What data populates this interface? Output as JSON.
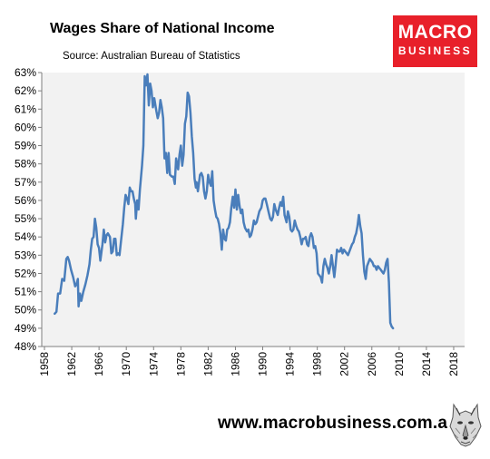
{
  "header": {
    "title": "Wages Share of National Income",
    "subtitle": "Source: Australian Bureau of Statistics"
  },
  "logo": {
    "line1": "MACRO",
    "line2": "BUSINESS",
    "bg_color": "#e8202a"
  },
  "footer": {
    "url": "www.macrobusiness.com.au",
    "mascot_icon": "wolf-icon"
  },
  "chart_data": {
    "type": "line",
    "title": "Wages Share of National Income",
    "subtitle": "Source: Australian Bureau of Statistics",
    "xlabel": "",
    "ylabel": "",
    "xlim": [
      1957.6,
      2019.6
    ],
    "ylim": [
      48,
      63
    ],
    "xticks": [
      1958,
      1962,
      1966,
      1970,
      1974,
      1978,
      1982,
      1986,
      1990,
      1994,
      1998,
      2002,
      2006,
      2010,
      2014,
      2018
    ],
    "yticks": [
      "48%",
      "49%",
      "50%",
      "51%",
      "52%",
      "53%",
      "54%",
      "55%",
      "56%",
      "57%",
      "58%",
      "59%",
      "60%",
      "61%",
      "62%",
      "63%"
    ],
    "grid": false,
    "plot_bg": "#f2f2f2",
    "line_color": "#4a7ebb",
    "series": [
      {
        "values": [
          [
            1959.5,
            49.8
          ],
          [
            1959.75,
            49.9
          ],
          [
            1960.0,
            50.9
          ],
          [
            1960.3,
            50.9
          ],
          [
            1960.6,
            51.7
          ],
          [
            1960.9,
            51.6
          ],
          [
            1961.2,
            52.8
          ],
          [
            1961.4,
            52.9
          ],
          [
            1961.6,
            52.7
          ],
          [
            1961.9,
            52.2
          ],
          [
            1962.2,
            51.8
          ],
          [
            1962.5,
            51.3
          ],
          [
            1962.7,
            51.4
          ],
          [
            1962.9,
            51.7
          ],
          [
            1963.0,
            50.2
          ],
          [
            1963.2,
            50.9
          ],
          [
            1963.4,
            50.5
          ],
          [
            1963.7,
            51.0
          ],
          [
            1964.0,
            51.4
          ],
          [
            1964.3,
            51.9
          ],
          [
            1964.6,
            52.5
          ],
          [
            1964.8,
            53.3
          ],
          [
            1965.0,
            53.9
          ],
          [
            1965.2,
            54.0
          ],
          [
            1965.4,
            55.0
          ],
          [
            1965.6,
            54.5
          ],
          [
            1965.8,
            53.6
          ],
          [
            1966.0,
            53.4
          ],
          [
            1966.2,
            52.7
          ],
          [
            1966.5,
            53.6
          ],
          [
            1966.7,
            54.4
          ],
          [
            1966.9,
            53.7
          ],
          [
            1967.1,
            54.1
          ],
          [
            1967.3,
            54.2
          ],
          [
            1967.6,
            54.0
          ],
          [
            1967.8,
            53.1
          ],
          [
            1968.0,
            53.2
          ],
          [
            1968.2,
            53.9
          ],
          [
            1968.4,
            53.9
          ],
          [
            1968.6,
            53.0
          ],
          [
            1968.8,
            53.1
          ],
          [
            1969.0,
            53.0
          ],
          [
            1969.2,
            53.7
          ],
          [
            1969.5,
            54.7
          ],
          [
            1969.7,
            55.6
          ],
          [
            1969.9,
            56.3
          ],
          [
            1970.1,
            56.1
          ],
          [
            1970.3,
            55.8
          ],
          [
            1970.5,
            56.7
          ],
          [
            1970.7,
            56.5
          ],
          [
            1970.9,
            56.5
          ],
          [
            1971.1,
            56.1
          ],
          [
            1971.3,
            55.8
          ],
          [
            1971.4,
            55.0
          ],
          [
            1971.6,
            56.0
          ],
          [
            1971.8,
            55.5
          ],
          [
            1972.0,
            56.6
          ],
          [
            1972.3,
            57.9
          ],
          [
            1972.5,
            59.0
          ],
          [
            1972.7,
            62.8
          ],
          [
            1972.9,
            62.3
          ],
          [
            1973.1,
            62.9
          ],
          [
            1973.3,
            61.2
          ],
          [
            1973.5,
            62.4
          ],
          [
            1973.7,
            62.0
          ],
          [
            1973.9,
            61.1
          ],
          [
            1974.1,
            61.6
          ],
          [
            1974.4,
            60.9
          ],
          [
            1974.6,
            60.5
          ],
          [
            1974.8,
            60.8
          ],
          [
            1975.0,
            61.5
          ],
          [
            1975.2,
            61.1
          ],
          [
            1975.4,
            60.5
          ],
          [
            1975.6,
            58.3
          ],
          [
            1975.8,
            58.6
          ],
          [
            1976.0,
            57.5
          ],
          [
            1976.2,
            58.6
          ],
          [
            1976.4,
            57.4
          ],
          [
            1976.7,
            57.3
          ],
          [
            1976.9,
            57.3
          ],
          [
            1977.1,
            56.9
          ],
          [
            1977.3,
            58.3
          ],
          [
            1977.6,
            57.7
          ],
          [
            1977.8,
            58.5
          ],
          [
            1978.0,
            59.0
          ],
          [
            1978.2,
            57.9
          ],
          [
            1978.4,
            58.5
          ],
          [
            1978.6,
            60.2
          ],
          [
            1978.8,
            60.6
          ],
          [
            1979.0,
            61.9
          ],
          [
            1979.2,
            61.7
          ],
          [
            1979.4,
            60.8
          ],
          [
            1979.6,
            59.5
          ],
          [
            1979.8,
            58.6
          ],
          [
            1980.0,
            57.2
          ],
          [
            1980.2,
            56.7
          ],
          [
            1980.3,
            57.0
          ],
          [
            1980.5,
            56.5
          ],
          [
            1980.8,
            57.4
          ],
          [
            1981.0,
            57.5
          ],
          [
            1981.2,
            57.3
          ],
          [
            1981.4,
            56.5
          ],
          [
            1981.6,
            56.1
          ],
          [
            1981.8,
            56.5
          ],
          [
            1982.0,
            57.4
          ],
          [
            1982.2,
            57.0
          ],
          [
            1982.4,
            56.8
          ],
          [
            1982.6,
            57.6
          ],
          [
            1982.8,
            56.0
          ],
          [
            1983.0,
            55.5
          ],
          [
            1983.2,
            55.1
          ],
          [
            1983.4,
            55.0
          ],
          [
            1983.6,
            54.7
          ],
          [
            1983.8,
            54.2
          ],
          [
            1984.0,
            53.3
          ],
          [
            1984.2,
            54.4
          ],
          [
            1984.4,
            53.9
          ],
          [
            1984.6,
            53.8
          ],
          [
            1984.8,
            54.4
          ],
          [
            1985.0,
            54.5
          ],
          [
            1985.2,
            54.8
          ],
          [
            1985.4,
            55.6
          ],
          [
            1985.6,
            56.2
          ],
          [
            1985.8,
            55.6
          ],
          [
            1986.0,
            56.6
          ],
          [
            1986.2,
            55.5
          ],
          [
            1986.4,
            56.3
          ],
          [
            1986.6,
            55.7
          ],
          [
            1986.8,
            55.3
          ],
          [
            1987.0,
            55.5
          ],
          [
            1987.2,
            54.8
          ],
          [
            1987.4,
            54.5
          ],
          [
            1987.7,
            54.3
          ],
          [
            1987.9,
            54.4
          ],
          [
            1988.1,
            54.0
          ],
          [
            1988.3,
            54.1
          ],
          [
            1988.5,
            54.4
          ],
          [
            1988.7,
            54.9
          ],
          [
            1988.9,
            54.7
          ],
          [
            1989.1,
            54.8
          ],
          [
            1989.3,
            55.1
          ],
          [
            1989.5,
            55.4
          ],
          [
            1989.8,
            55.6
          ],
          [
            1990.0,
            56.0
          ],
          [
            1990.2,
            56.1
          ],
          [
            1990.4,
            56.1
          ],
          [
            1990.6,
            55.8
          ],
          [
            1990.9,
            55.3
          ],
          [
            1991.1,
            55.0
          ],
          [
            1991.3,
            54.9
          ],
          [
            1991.5,
            55.1
          ],
          [
            1991.7,
            55.8
          ],
          [
            1991.9,
            55.5
          ],
          [
            1992.2,
            55.2
          ],
          [
            1992.4,
            55.6
          ],
          [
            1992.6,
            55.9
          ],
          [
            1992.8,
            55.7
          ],
          [
            1993.0,
            56.2
          ],
          [
            1993.2,
            55.2
          ],
          [
            1993.5,
            54.8
          ],
          [
            1993.7,
            55.4
          ],
          [
            1993.9,
            55.1
          ],
          [
            1994.1,
            54.4
          ],
          [
            1994.3,
            54.3
          ],
          [
            1994.5,
            54.4
          ],
          [
            1994.7,
            54.9
          ],
          [
            1994.9,
            54.6
          ],
          [
            1995.1,
            54.4
          ],
          [
            1995.3,
            54.3
          ],
          [
            1995.5,
            54.0
          ],
          [
            1995.7,
            53.6
          ],
          [
            1995.9,
            53.9
          ],
          [
            1996.1,
            53.9
          ],
          [
            1996.3,
            54.0
          ],
          [
            1996.5,
            53.6
          ],
          [
            1996.7,
            53.5
          ],
          [
            1996.9,
            54.0
          ],
          [
            1997.1,
            54.2
          ],
          [
            1997.3,
            54.0
          ],
          [
            1997.5,
            53.4
          ],
          [
            1997.7,
            53.5
          ],
          [
            1997.9,
            53.1
          ],
          [
            1998.1,
            52.0
          ],
          [
            1998.3,
            51.9
          ],
          [
            1998.5,
            51.8
          ],
          [
            1998.7,
            51.5
          ],
          [
            1998.9,
            52.4
          ],
          [
            1999.1,
            52.8
          ],
          [
            1999.3,
            52.5
          ],
          [
            1999.5,
            52.3
          ],
          [
            1999.7,
            52.0
          ],
          [
            1999.9,
            52.4
          ],
          [
            2000.1,
            53.0
          ],
          [
            2000.3,
            52.4
          ],
          [
            2000.5,
            51.8
          ],
          [
            2000.7,
            52.5
          ],
          [
            2000.9,
            53.3
          ],
          [
            2001.1,
            53.2
          ],
          [
            2001.3,
            53.2
          ],
          [
            2001.5,
            53.4
          ],
          [
            2001.7,
            53.1
          ],
          [
            2001.9,
            53.3
          ],
          [
            2002.1,
            53.2
          ],
          [
            2002.3,
            53.1
          ],
          [
            2002.5,
            53.0
          ],
          [
            2002.7,
            53.2
          ],
          [
            2002.9,
            53.4
          ],
          [
            2003.1,
            53.6
          ],
          [
            2003.3,
            53.7
          ],
          [
            2003.5,
            54.0
          ],
          [
            2003.7,
            54.2
          ],
          [
            2003.9,
            54.6
          ],
          [
            2004.1,
            55.2
          ],
          [
            2004.3,
            54.6
          ],
          [
            2004.5,
            54.2
          ],
          [
            2004.7,
            53.0
          ],
          [
            2004.9,
            52.1
          ],
          [
            2005.1,
            51.7
          ],
          [
            2005.3,
            52.4
          ],
          [
            2005.5,
            52.6
          ],
          [
            2005.7,
            52.8
          ],
          [
            2005.9,
            52.7
          ],
          [
            2006.1,
            52.6
          ],
          [
            2006.3,
            52.4
          ],
          [
            2006.5,
            52.4
          ],
          [
            2006.7,
            52.2
          ],
          [
            2006.9,
            52.4
          ],
          [
            2007.1,
            52.3
          ],
          [
            2007.3,
            52.2
          ],
          [
            2007.5,
            52.1
          ],
          [
            2007.7,
            52.0
          ],
          [
            2007.9,
            52.2
          ],
          [
            2008.1,
            52.6
          ],
          [
            2008.3,
            52.8
          ],
          [
            2008.5,
            51.5
          ],
          [
            2008.7,
            49.3
          ],
          [
            2008.9,
            49.1
          ],
          [
            2009.1,
            49.0
          ]
        ]
      }
    ]
  }
}
